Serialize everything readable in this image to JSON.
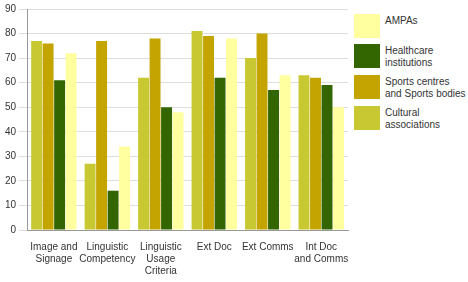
{
  "chart_data": {
    "type": "bar",
    "categories": [
      "Image and Signage",
      "Linguistic Competency",
      "Linguistic Usage Criteria",
      "Ext Doc",
      "Ext Comms",
      "Int Doc and Comms"
    ],
    "series": [
      {
        "name": "Cultural associations",
        "color": "#c8c832",
        "values": [
          77,
          27,
          62,
          81,
          70,
          63
        ]
      },
      {
        "name": "Sports centres and Sports bodies",
        "color": "#c4a400",
        "values": [
          76,
          77,
          78,
          79,
          80,
          62
        ]
      },
      {
        "name": "Healthcare institutions",
        "color": "#336600",
        "values": [
          61,
          16,
          50,
          62,
          57,
          59
        ]
      },
      {
        "name": "AMPAs",
        "color": "#ffffa0",
        "values": [
          72,
          34,
          48,
          78,
          63,
          50
        ]
      }
    ],
    "ylim": [
      0,
      90
    ],
    "yticks": [
      0,
      10,
      20,
      30,
      40,
      50,
      60,
      70,
      80,
      90
    ],
    "grid": true,
    "legend": "right"
  }
}
